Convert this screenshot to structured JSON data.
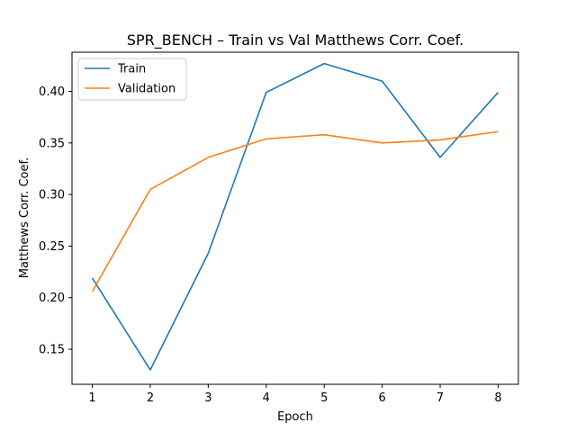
{
  "chart_data": {
    "type": "line",
    "title": "SPR_BENCH – Train vs Val Matthews Corr. Coef.",
    "xlabel": "Epoch",
    "ylabel": "Matthews Corr. Coef.",
    "x": [
      1,
      2,
      3,
      4,
      5,
      6,
      7,
      8
    ],
    "xticks": [
      "1",
      "2",
      "3",
      "4",
      "5",
      "6",
      "7",
      "8"
    ],
    "yticks": [
      "0.15",
      "0.20",
      "0.25",
      "0.30",
      "0.35",
      "0.40"
    ],
    "xlim": [
      0.65,
      8.35
    ],
    "ylim": [
      0.116,
      0.438
    ],
    "grid": false,
    "legend_position": "top-left",
    "series": [
      {
        "name": "Train",
        "color": "#1f77b4",
        "values": [
          0.219,
          0.13,
          0.243,
          0.399,
          0.427,
          0.41,
          0.336,
          0.399
        ]
      },
      {
        "name": "Validation",
        "color": "#ff7f0e",
        "values": [
          0.206,
          0.305,
          0.336,
          0.354,
          0.358,
          0.35,
          0.353,
          0.361
        ]
      }
    ]
  }
}
